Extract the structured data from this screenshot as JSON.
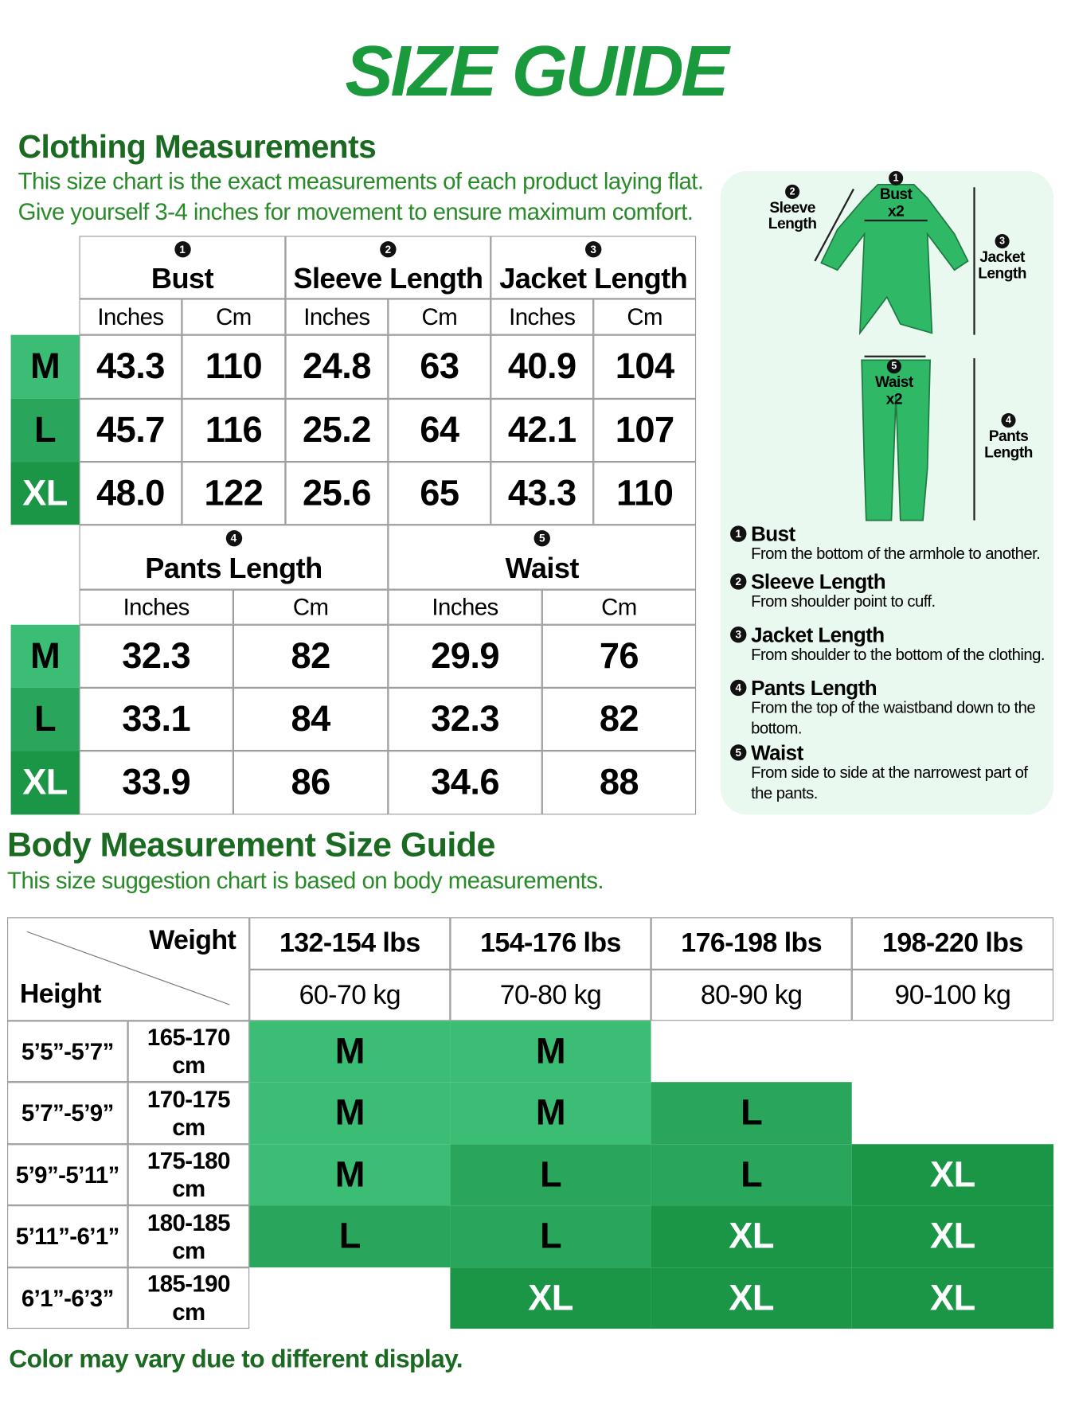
{
  "header": {
    "title": "SIZE GUIDE"
  },
  "clothing": {
    "title": "Clothing Measurements",
    "description": [
      "This size chart is the exact measurements of each product laying flat.",
      "Give yourself 3-4 inches for movement to ensure maximum comfort."
    ],
    "units": [
      "Inches",
      "Cm"
    ],
    "top_table": {
      "groups": [
        {
          "number": "1",
          "name": "Bust"
        },
        {
          "number": "2",
          "name": "Sleeve Length"
        },
        {
          "number": "3",
          "name": "Jacket Length"
        }
      ],
      "rows": [
        {
          "size": "M",
          "values": [
            "43.3",
            "110",
            "24.8",
            "63",
            "40.9",
            "104"
          ]
        },
        {
          "size": "L",
          "values": [
            "45.7",
            "116",
            "25.2",
            "64",
            "42.1",
            "107"
          ]
        },
        {
          "size": "XL",
          "values": [
            "48.0",
            "122",
            "25.6",
            "65",
            "43.3",
            "110"
          ]
        }
      ]
    },
    "bottom_table": {
      "groups": [
        {
          "number": "4",
          "name": "Pants Length"
        },
        {
          "number": "5",
          "name": "Waist"
        }
      ],
      "rows": [
        {
          "size": "M",
          "values": [
            "32.3",
            "82",
            "29.9",
            "76"
          ]
        },
        {
          "size": "L",
          "values": [
            "33.1",
            "84",
            "32.3",
            "82"
          ]
        },
        {
          "size": "XL",
          "values": [
            "33.9",
            "86",
            "34.6",
            "88"
          ]
        }
      ]
    }
  },
  "diagram": {
    "labels": [
      {
        "number": "1",
        "text": "Bust",
        "extra": "x2"
      },
      {
        "number": "2",
        "text": "Sleeve Length"
      },
      {
        "number": "3",
        "text": "Jacket Length"
      },
      {
        "number": "5",
        "text": "Waist",
        "extra": "x2"
      },
      {
        "number": "4",
        "text": "Pants Length"
      }
    ],
    "definitions": [
      {
        "number": "1",
        "term": "Bust",
        "text": "From the bottom of the armhole to another."
      },
      {
        "number": "2",
        "term": "Sleeve Length",
        "text": "From shoulder point to cuff."
      },
      {
        "number": "3",
        "term": "Jacket Length",
        "text": "From shoulder to the bottom of the clothing."
      },
      {
        "number": "4",
        "term": "Pants Length",
        "text": "From the top of the waistband down to the bottom."
      },
      {
        "number": "5",
        "term": "Waist",
        "text": "From side to side at the narrowest part of the pants."
      }
    ]
  },
  "body": {
    "title": "Body Measurement Size Guide",
    "description": "This size suggestion chart is based on body measurements.",
    "corner": {
      "weight": "Weight",
      "height": "Height"
    },
    "weights_lbs": [
      "132-154 lbs",
      "154-176 lbs",
      "176-198 lbs",
      "198-220 lbs"
    ],
    "weights_kg": [
      "60-70 kg",
      "70-80 kg",
      "80-90 kg",
      "90-100 kg"
    ],
    "rows": [
      {
        "feet": "5’5”-5’7”",
        "cm": "165-170 cm",
        "sizes": [
          "M",
          "M",
          null,
          null
        ]
      },
      {
        "feet": "5’7”-5’9”",
        "cm": "170-175 cm",
        "sizes": [
          "M",
          "M",
          "L",
          null
        ]
      },
      {
        "feet": "5’9”-5’11”",
        "cm": "175-180 cm",
        "sizes": [
          "M",
          "L",
          "L",
          "XL"
        ]
      },
      {
        "feet": "5’11”-6’1”",
        "cm": "180-185 cm",
        "sizes": [
          "L",
          "L",
          "XL",
          "XL"
        ]
      },
      {
        "feet": "6’1”-6’3”",
        "cm": "185-190 cm",
        "sizes": [
          null,
          "XL",
          "XL",
          "XL"
        ]
      }
    ]
  },
  "footer": {
    "note": "Color may vary due to different display."
  }
}
